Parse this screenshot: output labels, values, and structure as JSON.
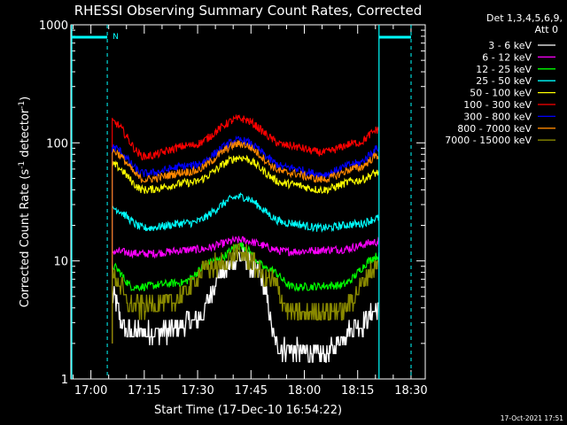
{
  "chart_data": {
    "type": "line",
    "title": "RHESSI Observing Summary Count Rates, Corrected",
    "xlabel": "Start Time (17-Dec-10 16:54:22)",
    "ylabel_main": "Corrected Count Rate (s",
    "ylabel_sup1": "-1",
    "ylabel_mid": " detector",
    "ylabel_sup2": "-1",
    "ylabel_end": ")",
    "y_scale": "log",
    "ylim": [
      1,
      1000
    ],
    "xlim": [
      "16:54:22",
      "18:34:00"
    ],
    "y_ticks": [
      {
        "value": 1,
        "label": "1"
      },
      {
        "value": 10,
        "label": "10"
      },
      {
        "value": 100,
        "label": "100"
      },
      {
        "value": 1000,
        "label": "1000"
      }
    ],
    "x_ticks": [
      "17:00",
      "17:15",
      "17:30",
      "17:45",
      "18:00",
      "18:15",
      "18:30"
    ],
    "grid": false,
    "legend_placement": "top-right",
    "legend_header": [
      "Det 1,3,4,5,6,9,",
      "Att 0"
    ],
    "flag_marker": {
      "label": "N",
      "color": "#00ffff"
    },
    "data_window": [
      "17:06",
      "18:21"
    ],
    "timestamp": "17-Oct-2021 17:51",
    "series": [
      {
        "name": "3 - 6 keV",
        "color": "#ffffff",
        "anchors": [
          [
            "17:06",
            5.0
          ],
          [
            "17:10",
            2.5
          ],
          [
            "17:20",
            2.5
          ],
          [
            "17:30",
            3.2
          ],
          [
            "17:37",
            8.0
          ],
          [
            "17:42",
            11.0
          ],
          [
            "17:47",
            8.0
          ],
          [
            "17:53",
            1.8
          ],
          [
            "18:05",
            1.6
          ],
          [
            "18:15",
            2.8
          ],
          [
            "18:21",
            4.0
          ]
        ]
      },
      {
        "name": "6 - 12 keV",
        "color": "#ff00ff",
        "anchors": [
          [
            "17:06",
            12.0
          ],
          [
            "17:15",
            11.5
          ],
          [
            "17:30",
            12.5
          ],
          [
            "17:42",
            15.0
          ],
          [
            "17:55",
            12.0
          ],
          [
            "18:10",
            12.5
          ],
          [
            "18:21",
            14.5
          ]
        ]
      },
      {
        "name": "12 - 25 keV",
        "color": "#00ff00",
        "anchors": [
          [
            "17:06",
            9.0
          ],
          [
            "17:12",
            6.0
          ],
          [
            "17:25",
            6.5
          ],
          [
            "17:35",
            10.0
          ],
          [
            "17:42",
            13.5
          ],
          [
            "17:50",
            8.5
          ],
          [
            "17:57",
            6.0
          ],
          [
            "18:10",
            6.2
          ],
          [
            "18:21",
            11.0
          ]
        ]
      },
      {
        "name": "25 - 50 keV",
        "color": "#00ffff",
        "anchors": [
          [
            "17:06",
            28.0
          ],
          [
            "17:15",
            19.0
          ],
          [
            "17:28",
            21.0
          ],
          [
            "17:42",
            35.0
          ],
          [
            "17:55",
            21.0
          ],
          [
            "18:05",
            19.0
          ],
          [
            "18:15",
            20.5
          ],
          [
            "18:21",
            23.0
          ]
        ]
      },
      {
        "name": "50 - 100 keV",
        "color": "#ffff00",
        "anchors": [
          [
            "17:06",
            65.0
          ],
          [
            "17:15",
            40.0
          ],
          [
            "17:28",
            46.0
          ],
          [
            "17:42",
            75.0
          ],
          [
            "17:55",
            45.0
          ],
          [
            "18:05",
            40.0
          ],
          [
            "18:15",
            48.0
          ],
          [
            "18:21",
            56.0
          ]
        ]
      },
      {
        "name": "100 - 300 keV",
        "color": "#ff0000",
        "anchors": [
          [
            "17:06",
            150.0
          ],
          [
            "17:15",
            77.0
          ],
          [
            "17:28",
            95.0
          ],
          [
            "17:42",
            160.0
          ],
          [
            "17:55",
            95.0
          ],
          [
            "18:05",
            83.0
          ],
          [
            "18:15",
            100.0
          ],
          [
            "18:21",
            130.0
          ]
        ]
      },
      {
        "name": "300 - 800 keV",
        "color": "#0000ff",
        "anchors": [
          [
            "17:06",
            92.0
          ],
          [
            "17:15",
            55.0
          ],
          [
            "17:28",
            64.0
          ],
          [
            "17:42",
            105.0
          ],
          [
            "17:55",
            62.0
          ],
          [
            "18:05",
            54.0
          ],
          [
            "18:15",
            67.0
          ],
          [
            "18:21",
            90.0
          ]
        ]
      },
      {
        "name": "800 - 7000 keV",
        "color": "#ff8800",
        "anchors": [
          [
            "17:06",
            85.0
          ],
          [
            "17:15",
            49.0
          ],
          [
            "17:28",
            57.0
          ],
          [
            "17:42",
            98.0
          ],
          [
            "17:55",
            56.0
          ],
          [
            "18:05",
            49.0
          ],
          [
            "18:15",
            61.0
          ],
          [
            "18:21",
            78.0
          ]
        ]
      },
      {
        "name": "7000 - 15000 keV",
        "color": "#888800",
        "anchors": [
          [
            "17:06",
            7.5
          ],
          [
            "17:12",
            4.0
          ],
          [
            "17:22",
            4.5
          ],
          [
            "17:35",
            9.0
          ],
          [
            "17:42",
            11.5
          ],
          [
            "17:50",
            7.0
          ],
          [
            "17:57",
            3.5
          ],
          [
            "18:10",
            3.8
          ],
          [
            "18:21",
            9.0
          ]
        ]
      }
    ]
  }
}
